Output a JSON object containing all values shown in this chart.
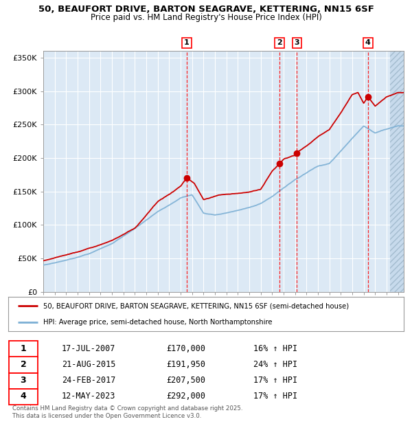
{
  "title_line1": "50, BEAUFORT DRIVE, BARTON SEAGRAVE, KETTERING, NN15 6SF",
  "title_line2": "Price paid vs. HM Land Registry's House Price Index (HPI)",
  "background_color": "#dce9f5",
  "hatch_color": "#b8cfe0",
  "red_line_color": "#cc0000",
  "blue_line_color": "#7bafd4",
  "grid_color": "#ffffff",
  "ytick_labels": [
    "£0",
    "£50K",
    "£100K",
    "£150K",
    "£200K",
    "£250K",
    "£300K",
    "£350K"
  ],
  "ytick_values": [
    0,
    50000,
    100000,
    150000,
    200000,
    250000,
    300000,
    350000
  ],
  "ylim": [
    0,
    360000
  ],
  "xlim_start": 1995.0,
  "xlim_end": 2026.5,
  "sale_dates": [
    2007.54,
    2015.64,
    2017.15,
    2023.37
  ],
  "sale_prices": [
    170000,
    191950,
    207500,
    292000
  ],
  "sale_labels": [
    "1",
    "2",
    "3",
    "4"
  ],
  "legend_red_label": "50, BEAUFORT DRIVE, BARTON SEAGRAVE, KETTERING, NN15 6SF (semi-detached house)",
  "legend_blue_label": "HPI: Average price, semi-detached house, North Northamptonshire",
  "table_rows": [
    [
      "1",
      "17-JUL-2007",
      "£170,000",
      "16% ↑ HPI"
    ],
    [
      "2",
      "21-AUG-2015",
      "£191,950",
      "24% ↑ HPI"
    ],
    [
      "3",
      "24-FEB-2017",
      "£207,500",
      "17% ↑ HPI"
    ],
    [
      "4",
      "12-MAY-2023",
      "£292,000",
      "17% ↑ HPI"
    ]
  ],
  "footer_text": "Contains HM Land Registry data © Crown copyright and database right 2025.\nThis data is licensed under the Open Government Licence v3.0.",
  "hpi_anchors_x": [
    1995,
    1997,
    1999,
    2001,
    2003,
    2005,
    2007,
    2008,
    2009,
    2010,
    2011,
    2012,
    2013,
    2014,
    2015,
    2016,
    2017,
    2018,
    2019,
    2020,
    2021,
    2022,
    2023,
    2024,
    2025,
    2026
  ],
  "hpi_anchors_y": [
    40000,
    47000,
    57000,
    72000,
    95000,
    120000,
    140000,
    145000,
    118000,
    115000,
    118000,
    122000,
    126000,
    132000,
    142000,
    155000,
    168000,
    178000,
    188000,
    192000,
    210000,
    230000,
    248000,
    238000,
    243000,
    248000
  ],
  "price_anchors_x": [
    1995,
    1997,
    1999,
    2001,
    2003,
    2005,
    2006.5,
    2007.0,
    2007.54,
    2008.2,
    2009,
    2010,
    2011,
    2012,
    2013,
    2014,
    2015.0,
    2015.64,
    2016.0,
    2017.0,
    2017.15,
    2018,
    2019,
    2020,
    2021,
    2022,
    2022.5,
    2023.0,
    2023.37,
    2024.0,
    2025.0,
    2026.0
  ],
  "price_anchors_y": [
    47000,
    55000,
    65000,
    77000,
    95000,
    135000,
    152000,
    158000,
    170000,
    162000,
    138000,
    143000,
    146000,
    147000,
    149000,
    153000,
    180000,
    191950,
    198000,
    204000,
    207500,
    218000,
    232000,
    243000,
    268000,
    295000,
    298000,
    282000,
    292000,
    278000,
    292000,
    298000
  ]
}
